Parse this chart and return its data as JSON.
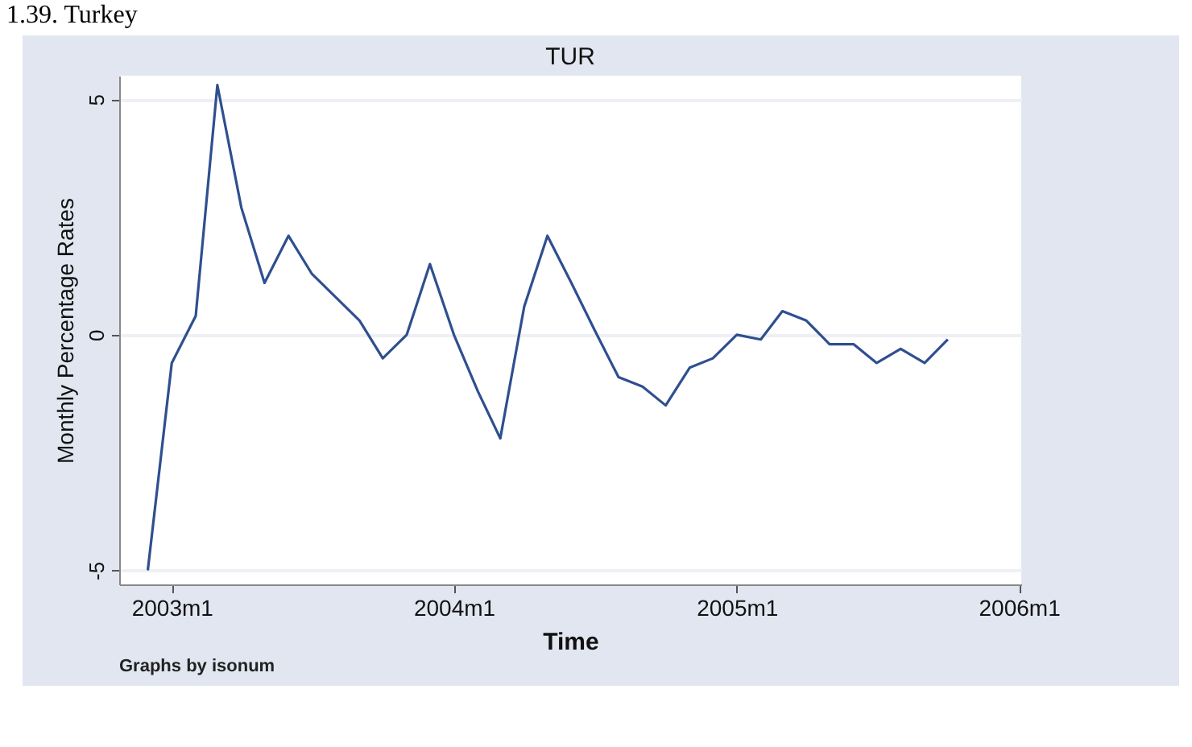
{
  "chart_data": {
    "type": "line",
    "title": "1.39. Turkey",
    "subtitle": "TUR",
    "xlabel": "Time",
    "ylabel": "Monthly Percentage Rates",
    "annotations": [
      "Graphs by isonum"
    ],
    "x": [
      "2002-12",
      "2003-01",
      "2003-02",
      "2003-03",
      "2003-04",
      "2003-05",
      "2003-06",
      "2003-07",
      "2003-08",
      "2003-09",
      "2003-10",
      "2003-11",
      "2003-12",
      "2004-01",
      "2004-02",
      "2004-03",
      "2004-04",
      "2004-05",
      "2004-06",
      "2004-07",
      "2004-08",
      "2004-09",
      "2004-10",
      "2004-11",
      "2004-12",
      "2005-01",
      "2005-02",
      "2005-03",
      "2005-04",
      "2005-05",
      "2005-06",
      "2005-07",
      "2005-08",
      "2005-09",
      "2005-10"
    ],
    "series": [
      {
        "color": "#2f4f8f",
        "values": [
          -5.0,
          -0.6,
          0.4,
          5.3,
          2.7,
          1.1,
          2.1,
          1.3,
          0.8,
          0.3,
          -0.5,
          0.0,
          1.5,
          0.0,
          -1.2,
          -2.2,
          0.6,
          2.1,
          1.1,
          0.1,
          -0.9,
          -1.1,
          -1.5,
          -0.7,
          -0.5,
          0.0,
          -0.1,
          0.5,
          0.3,
          -0.2,
          -0.2,
          -0.6,
          -0.3,
          -0.6,
          -0.1
        ]
      }
    ],
    "xlim": [
      "2002-10-25",
      "2006-01-04"
    ],
    "ylim": [
      -5.3,
      5.5
    ],
    "xticks": [
      {
        "value": "2003-01",
        "label": "2003m1"
      },
      {
        "value": "2004-01",
        "label": "2004m1"
      },
      {
        "value": "2005-01",
        "label": "2005m1"
      },
      {
        "value": "2006-01",
        "label": "2006m1"
      }
    ],
    "yticks": [
      -5,
      0,
      5
    ],
    "grid": "y",
    "marker": "none",
    "line_style": "solid"
  }
}
